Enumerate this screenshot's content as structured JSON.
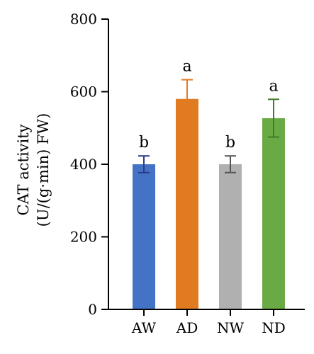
{
  "chart_data": {
    "type": "bar",
    "categories": [
      "AW",
      "AD",
      "NW",
      "ND"
    ],
    "values": [
      400,
      580,
      400,
      527
    ],
    "errors": [
      23,
      53,
      23,
      52
    ],
    "significance": [
      "b",
      "a",
      "b",
      "a"
    ],
    "colors": [
      "#4472c4",
      "#e07b22",
      "#b0b0b0",
      "#6aaa44"
    ],
    "error_colors": [
      "#2b3a8c",
      "#e07b22",
      "#555555",
      "#3e7d2a"
    ],
    "title": "",
    "xlabel": "",
    "ylabel_line1": "CAT activity",
    "ylabel_line2": "(U/(g·min) FW)",
    "ylim": [
      0,
      800
    ],
    "yticks": [
      0,
      200,
      400,
      600,
      800
    ],
    "grid": false,
    "legend": "none"
  }
}
